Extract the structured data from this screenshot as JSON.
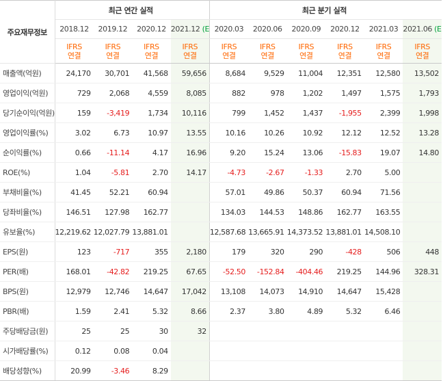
{
  "header": {
    "title": "주요재무정보",
    "annual": "최근 연간 실적",
    "quarterly": "최근 분기 실적",
    "periods": [
      "2018.12",
      "2019.12",
      "2020.12",
      "2021.12",
      "2020.03",
      "2020.06",
      "2020.09",
      "2020.12",
      "2021.03",
      "2021.06"
    ],
    "estimate_marks": [
      "",
      "",
      "",
      "(E)",
      "",
      "",
      "",
      "",
      "",
      "(E)"
    ],
    "ifrs_top": "IFRS",
    "ifrs_bottom": "연결"
  },
  "rows": [
    {
      "label": "매출액(억원)",
      "values": [
        "24,170",
        "30,701",
        "41,568",
        "59,656",
        "8,684",
        "9,529",
        "11,004",
        "12,351",
        "12,580",
        "13,502"
      ]
    },
    {
      "label": "영업이익(억원)",
      "values": [
        "729",
        "2,068",
        "4,559",
        "8,085",
        "882",
        "978",
        "1,202",
        "1,497",
        "1,575",
        "1,793"
      ]
    },
    {
      "label": "당기순이익(억원)",
      "values": [
        "159",
        "-3,419",
        "1,734",
        "10,116",
        "799",
        "1,452",
        "1,437",
        "-1,955",
        "2,399",
        "1,998"
      ]
    },
    {
      "label": "영업이익률(%)",
      "values": [
        "3.02",
        "6.73",
        "10.97",
        "13.55",
        "10.16",
        "10.26",
        "10.92",
        "12.12",
        "12.52",
        "13.28"
      ]
    },
    {
      "label": "순이익률(%)",
      "values": [
        "0.66",
        "-11.14",
        "4.17",
        "16.96",
        "9.20",
        "15.24",
        "13.06",
        "-15.83",
        "19.07",
        "14.80"
      ]
    },
    {
      "label": "ROE(%)",
      "values": [
        "1.04",
        "-5.81",
        "2.70",
        "14.17",
        "-4.73",
        "-2.67",
        "-1.33",
        "2.70",
        "5.00",
        ""
      ]
    },
    {
      "label": "부채비율(%)",
      "values": [
        "41.45",
        "52.21",
        "60.94",
        "",
        "57.01",
        "49.86",
        "50.37",
        "60.94",
        "71.56",
        ""
      ]
    },
    {
      "label": "당좌비율(%)",
      "values": [
        "146.51",
        "127.98",
        "162.77",
        "",
        "134.03",
        "144.53",
        "148.86",
        "162.77",
        "163.55",
        ""
      ]
    },
    {
      "label": "유보율(%)",
      "values": [
        "12,219.62",
        "12,027.79",
        "13,881.01",
        "",
        "12,587.68",
        "13,665.91",
        "14,373.52",
        "13,881.01",
        "14,508.10",
        ""
      ]
    },
    {
      "label": "EPS(원)",
      "values": [
        "123",
        "-717",
        "355",
        "2,180",
        "179",
        "320",
        "290",
        "-428",
        "506",
        "448"
      ]
    },
    {
      "label": "PER(배)",
      "values": [
        "168.01",
        "-42.82",
        "219.25",
        "67.65",
        "-52.50",
        "-152.84",
        "-404.46",
        "219.25",
        "144.96",
        "328.31"
      ]
    },
    {
      "label": "BPS(원)",
      "values": [
        "12,979",
        "12,746",
        "14,647",
        "17,042",
        "13,108",
        "14,073",
        "14,910",
        "14,647",
        "15,428",
        ""
      ]
    },
    {
      "label": "PBR(배)",
      "values": [
        "1.59",
        "2.41",
        "5.32",
        "8.66",
        "2.37",
        "3.80",
        "4.89",
        "5.32",
        "6.46",
        ""
      ]
    },
    {
      "label": "주당배당금(원)",
      "values": [
        "25",
        "25",
        "30",
        "32",
        "",
        "",
        "",
        "",
        "",
        ""
      ]
    },
    {
      "label": "시가배당률(%)",
      "values": [
        "0.12",
        "0.08",
        "0.04",
        "",
        "",
        "",
        "",
        "",
        "",
        ""
      ]
    },
    {
      "label": "배당성향(%)",
      "values": [
        "20.99",
        "-3.46",
        "8.29",
        "",
        "",
        "",
        "",
        "",
        "",
        ""
      ]
    }
  ],
  "colors": {
    "ifrs": "#ff6600",
    "negative": "#e51c1c",
    "estimate_bg": "#f3f8ef",
    "estimate_mark": "#00a13a"
  }
}
